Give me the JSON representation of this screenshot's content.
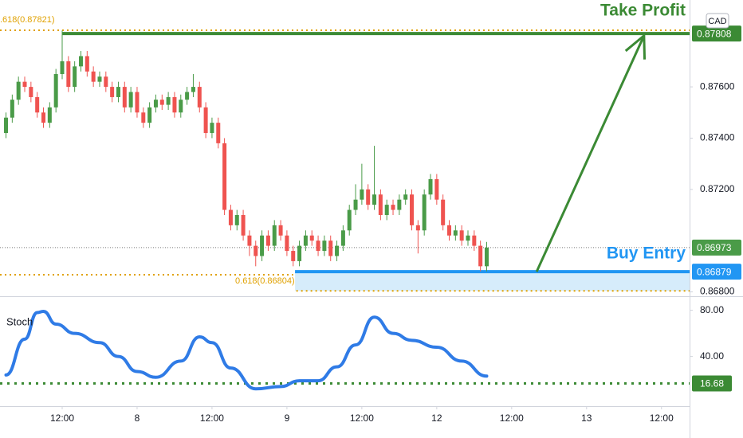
{
  "chart_data": {
    "type": "candlestick",
    "currency": "CAD",
    "x": [
      0,
      1,
      2,
      3,
      4,
      5,
      6,
      7,
      8,
      9,
      10,
      11,
      12,
      13,
      14,
      15,
      16,
      17,
      18,
      19,
      20,
      21,
      22,
      23,
      24,
      25,
      26,
      27,
      28,
      29,
      30,
      31,
      32,
      33,
      34,
      35,
      36,
      37,
      38,
      39,
      40,
      41,
      42,
      43,
      44,
      45,
      46,
      47,
      48,
      49,
      50,
      51,
      52,
      53,
      54,
      55,
      56,
      57,
      58,
      59,
      60,
      61,
      62,
      63,
      64,
      65,
      66,
      67,
      68,
      69,
      70,
      71,
      72,
      73,
      74,
      75,
      76,
      77
    ],
    "open": [
      0.8742,
      0.8748,
      0.8755,
      0.8762,
      0.876,
      0.8756,
      0.875,
      0.8746,
      0.8752,
      0.8765,
      0.877,
      0.876,
      0.8768,
      0.8772,
      0.8766,
      0.8762,
      0.8764,
      0.876,
      0.8756,
      0.876,
      0.8752,
      0.8758,
      0.875,
      0.8746,
      0.8752,
      0.8755,
      0.8753,
      0.8756,
      0.875,
      0.8755,
      0.8758,
      0.876,
      0.8752,
      0.8742,
      0.8746,
      0.8738,
      0.8712,
      0.8706,
      0.871,
      0.8702,
      0.8698,
      0.8694,
      0.8702,
      0.8698,
      0.8706,
      0.8702,
      0.8696,
      0.8692,
      0.8698,
      0.8702,
      0.87,
      0.8696,
      0.87,
      0.8694,
      0.8698,
      0.8704,
      0.8712,
      0.8716,
      0.872,
      0.8714,
      0.8718,
      0.871,
      0.8714,
      0.8712,
      0.8716,
      0.8718,
      0.8706,
      0.8704,
      0.8718,
      0.8724,
      0.8716,
      0.8706,
      0.8702,
      0.8704,
      0.87,
      0.8702,
      0.8698,
      0.869
    ],
    "high": [
      0.875,
      0.8757,
      0.8764,
      0.8764,
      0.8762,
      0.8758,
      0.8752,
      0.8754,
      0.8767,
      0.8782,
      0.8772,
      0.877,
      0.8774,
      0.8774,
      0.8768,
      0.8766,
      0.8766,
      0.8762,
      0.8762,
      0.8762,
      0.876,
      0.876,
      0.8752,
      0.8754,
      0.8757,
      0.8757,
      0.8758,
      0.8758,
      0.8757,
      0.876,
      0.8765,
      0.8762,
      0.8754,
      0.8748,
      0.8748,
      0.874,
      0.8714,
      0.8712,
      0.8712,
      0.8704,
      0.87,
      0.8704,
      0.8704,
      0.8708,
      0.8708,
      0.8704,
      0.8698,
      0.87,
      0.8704,
      0.8704,
      0.8702,
      0.8702,
      0.8702,
      0.87,
      0.8706,
      0.8714,
      0.8722,
      0.873,
      0.8722,
      0.8737,
      0.872,
      0.8716,
      0.8716,
      0.8718,
      0.872,
      0.872,
      0.8708,
      0.872,
      0.8726,
      0.8726,
      0.8718,
      0.8708,
      0.8706,
      0.8706,
      0.8704,
      0.8704,
      0.87,
      0.86995
    ],
    "low": [
      0.874,
      0.8746,
      0.8753,
      0.8758,
      0.8754,
      0.8748,
      0.8744,
      0.8744,
      0.875,
      0.8763,
      0.8758,
      0.8758,
      0.8766,
      0.8764,
      0.876,
      0.876,
      0.8758,
      0.8754,
      0.8754,
      0.875,
      0.875,
      0.8748,
      0.8744,
      0.8744,
      0.875,
      0.8751,
      0.8751,
      0.8748,
      0.8748,
      0.8753,
      0.8756,
      0.875,
      0.874,
      0.874,
      0.8736,
      0.871,
      0.8704,
      0.8704,
      0.87,
      0.8694,
      0.869,
      0.8692,
      0.8696,
      0.8696,
      0.87,
      0.8694,
      0.869,
      0.869,
      0.8696,
      0.8698,
      0.8694,
      0.8694,
      0.8692,
      0.8692,
      0.8696,
      0.8702,
      0.871,
      0.8714,
      0.8712,
      0.8712,
      0.8708,
      0.8708,
      0.871,
      0.871,
      0.8714,
      0.8704,
      0.8695,
      0.8702,
      0.8716,
      0.8714,
      0.8704,
      0.87,
      0.87,
      0.8698,
      0.8698,
      0.8696,
      0.8688,
      0.8688
    ],
    "close": [
      0.8748,
      0.8755,
      0.8762,
      0.876,
      0.8756,
      0.875,
      0.8746,
      0.8752,
      0.8765,
      0.877,
      0.876,
      0.8768,
      0.8772,
      0.8766,
      0.8762,
      0.8764,
      0.876,
      0.8756,
      0.876,
      0.8752,
      0.8758,
      0.875,
      0.8746,
      0.8752,
      0.8755,
      0.8753,
      0.8756,
      0.875,
      0.8755,
      0.8758,
      0.876,
      0.8752,
      0.8742,
      0.8746,
      0.8738,
      0.8712,
      0.8706,
      0.871,
      0.8702,
      0.8698,
      0.8694,
      0.8702,
      0.8698,
      0.8706,
      0.8702,
      0.8696,
      0.8692,
      0.8698,
      0.8702,
      0.87,
      0.8696,
      0.87,
      0.8694,
      0.8698,
      0.8704,
      0.8712,
      0.8716,
      0.872,
      0.8714,
      0.8718,
      0.871,
      0.8714,
      0.8712,
      0.8716,
      0.8718,
      0.8706,
      0.8704,
      0.8718,
      0.8724,
      0.8716,
      0.8706,
      0.8702,
      0.8704,
      0.87,
      0.8702,
      0.8698,
      0.869,
      0.86973
    ],
    "up_color": "#4a9b48",
    "down_color": "#ef5350",
    "xlim": [
      -0.96,
      109.5
    ],
    "ylim": [
      0.86783,
      0.87939
    ],
    "yticks": [
      {
        "value": 0.868,
        "label": "0.86800"
      },
      {
        "value": 0.872,
        "label": "0.87200"
      },
      {
        "value": 0.874,
        "label": "0.87400"
      },
      {
        "value": 0.876,
        "label": "0.87600"
      }
    ],
    "xticks": [
      {
        "value": 9,
        "label": "12:00"
      },
      {
        "value": 21,
        "label": "8"
      },
      {
        "value": 33,
        "label": "12:00"
      },
      {
        "value": 45,
        "label": "9"
      },
      {
        "value": 57,
        "label": "12:00"
      },
      {
        "value": 69,
        "label": "12"
      },
      {
        "value": 81,
        "label": "12:00"
      },
      {
        "value": 93,
        "label": "13"
      },
      {
        "value": 105,
        "label": "12:00"
      }
    ],
    "current_price": {
      "value": 0.86973,
      "color": "#4a9b48"
    },
    "fib_levels": [
      {
        "value": 0.87821,
        "label": ".618(0.87821)",
        "x": [
          -0.96,
          109.5
        ],
        "color": "#e0a100"
      },
      {
        "value": 0.86867,
        "x": [
          -0.96,
          46
        ],
        "color": "#e0a100"
      },
      {
        "value": 0.86804,
        "label": "0.618(0.86804)",
        "x": [
          46.5,
          109.5
        ],
        "color": "#e0a100"
      }
    ],
    "take_profit": {
      "value": 0.87808,
      "label": "Take Profit",
      "price_label": 0.87808,
      "x": [
        9,
        109.5
      ],
      "color": "#3b8a34"
    },
    "buy_entry": {
      "value": 0.86879,
      "label": "Buy Entry",
      "price_label": 0.86879,
      "zone_low": 0.86804,
      "x": [
        46.3,
        109.5
      ],
      "color": "#2196f3",
      "zone_color": "#d6ecfb"
    },
    "arrow": {
      "from": [
        85,
        0.86879
      ],
      "to": [
        102.2,
        0.878
      ],
      "color": "#3b8a34"
    },
    "stoch": {
      "name": "Stoch",
      "x": [
        0,
        3,
        5,
        6,
        8,
        11,
        15,
        18,
        21,
        24,
        28,
        31,
        33,
        36,
        40,
        44,
        47,
        50,
        53,
        56,
        59,
        62,
        65,
        69,
        73,
        77
      ],
      "values": [
        24,
        55,
        78,
        79,
        68,
        60,
        52,
        40,
        27,
        22,
        36,
        57,
        52,
        30,
        12,
        14,
        19,
        19,
        31,
        50,
        74,
        60,
        54,
        48,
        36,
        23
      ],
      "color": "#2f7be6",
      "ylim": [
        -3,
        88
      ],
      "yticks": [
        {
          "value": 80,
          "label": "80.00"
        },
        {
          "value": 40,
          "label": "40.00"
        }
      ],
      "level": 16.68,
      "level_color": "#3b8a34"
    }
  }
}
